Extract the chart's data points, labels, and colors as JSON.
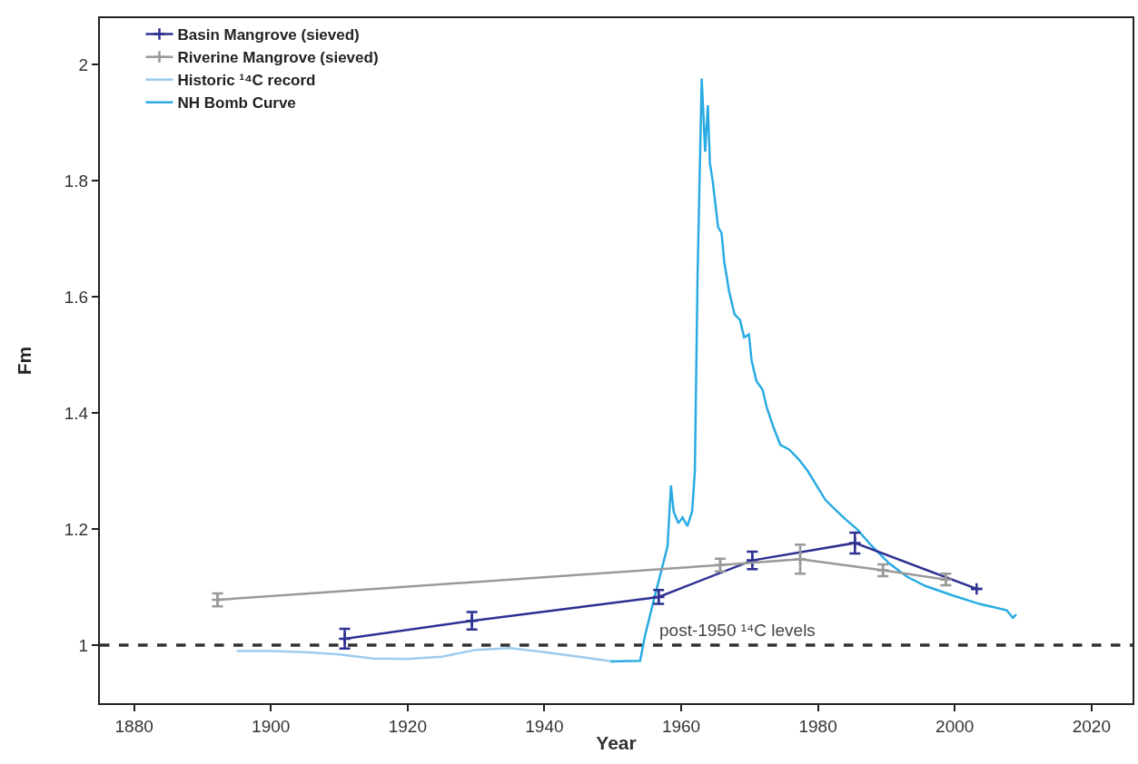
{
  "chart_data": {
    "type": "line",
    "xlabel": "Year",
    "ylabel": "Fm",
    "xlim": [
      1875,
      2026
    ],
    "xticks": [
      1880,
      1900,
      1920,
      1940,
      1960,
      1980,
      2000,
      2020
    ],
    "ylim": [
      0.9,
      2.08
    ],
    "yticks": [
      1,
      1.2,
      1.4,
      1.6,
      1.8,
      2
    ],
    "grid": false,
    "legend": "top left",
    "line_style": "solid",
    "series": [
      {
        "name": "Basin Mangrove (sieved)",
        "color": "#2e3192",
        "marker": "cross",
        "x": [
          1910.8,
          1929.4,
          1956.7,
          1970.4,
          1985.4,
          2003.2
        ],
        "values": [
          1.011,
          1.042,
          1.083,
          1.146,
          1.176,
          1.097
        ],
        "errors": [
          0.017,
          0.015,
          0.012,
          0.015,
          0.018,
          null
        ]
      },
      {
        "name": "Riverine Mangrove (sieved)",
        "color": "#999999",
        "marker": "cross",
        "x": [
          1892.2,
          1965.7,
          1977.4,
          1989.5,
          1998.7
        ],
        "values": [
          1.078,
          1.138,
          1.148,
          1.129,
          1.113
        ],
        "errors": [
          0.011,
          0.011,
          0.025,
          0.01,
          0.01
        ]
      },
      {
        "name": "Historic ¹⁴C record",
        "color": "#9ccbee",
        "x": [
          1895,
          1900,
          1905,
          1910,
          1915,
          1920,
          1925,
          1930,
          1935,
          1940,
          1945,
          1950
        ],
        "values": [
          0.99,
          0.99,
          0.988,
          0.984,
          0.977,
          0.976,
          0.98,
          0.992,
          0.995,
          0.988,
          0.98,
          0.972
        ]
      },
      {
        "name": "NH Bomb Curve",
        "color": "#29abe2",
        "x": [
          1949.7,
          1954,
          1954.7,
          1956,
          1958,
          1958.5,
          1958.9,
          1959.6,
          1960.2,
          1960.9,
          1961.6,
          1962,
          1962.4,
          1963,
          1963.5,
          1963.9,
          1964.2,
          1964.6,
          1965,
          1965.4,
          1965.9,
          1966.3,
          1967,
          1967.8,
          1968.6,
          1969.2,
          1969.9,
          1970.3,
          1971,
          1971.9,
          1972.5,
          1973.5,
          1974.5,
          1975.8,
          1977.2,
          1978.5,
          1979.8,
          1981.1,
          1982.4,
          1984,
          1985.7,
          1987.7,
          1990.4,
          1993,
          1995.7,
          1999.6,
          2003.6,
          2007.6,
          2008.5,
          2009
        ],
        "values": [
          0.972,
          0.973,
          1.016,
          1.078,
          1.17,
          1.275,
          1.23,
          1.21,
          1.22,
          1.205,
          1.23,
          1.3,
          1.64,
          1.976,
          1.85,
          1.93,
          1.83,
          1.8,
          1.76,
          1.72,
          1.71,
          1.66,
          1.61,
          1.57,
          1.56,
          1.53,
          1.535,
          1.49,
          1.455,
          1.44,
          1.41,
          1.375,
          1.345,
          1.337,
          1.32,
          1.3,
          1.275,
          1.25,
          1.235,
          1.217,
          1.2,
          1.173,
          1.141,
          1.118,
          1.102,
          1.086,
          1.071,
          1.06,
          1.047,
          1.053
        ]
      }
    ],
    "ref_lines": [
      {
        "axis": "y",
        "value": 1,
        "label": "post-1950 ¹⁴C levels",
        "color": "#333333",
        "line_style": "dashed"
      }
    ]
  }
}
